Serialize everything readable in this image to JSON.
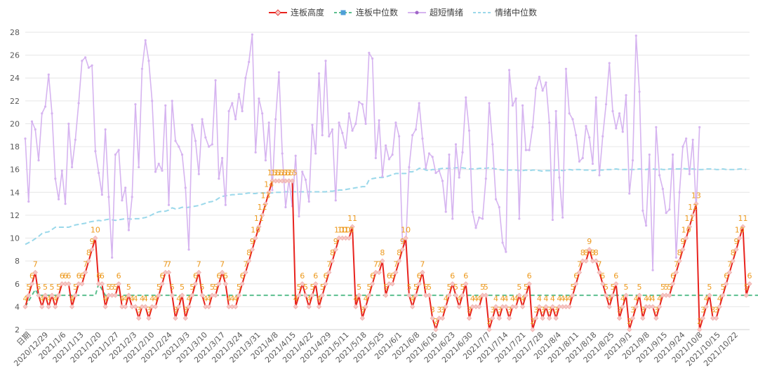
{
  "chart_data": {
    "type": "line",
    "title": "",
    "xlabel": "",
    "ylabel": "",
    "ylim": [
      2,
      28
    ],
    "yticks": [
      2,
      4,
      6,
      8,
      10,
      12,
      14,
      16,
      18,
      20,
      22,
      24,
      26,
      28
    ],
    "grid": "horizontal",
    "legend_position": "top",
    "x_tick_labels": [
      "日期",
      "2020/12/29",
      "2021/1/6",
      "2021/1/13",
      "2021/1/20",
      "2021/1/27",
      "2021/2/3",
      "2021/2/10",
      "2021/2/24",
      "2021/3/3",
      "2021/3/10",
      "2021/3/17",
      "2021/3/24",
      "2021/3/31",
      "2021/4/8",
      "2021/4/15",
      "2021/4/22",
      "2021/4/29",
      "2021/5/11",
      "2021/5/18",
      "2021/5/25",
      "2021/6/1",
      "2021/6/8",
      "2021/6/16",
      "2021/6/23",
      "2021/6/30",
      "2021/7/7",
      "2021/7/14",
      "2021/7/21",
      "2021/7/28",
      "2021/8/4",
      "2021/8/11",
      "2021/8/18",
      "2021/8/25",
      "2021/9/1",
      "2021/9/8",
      "2021/9/15",
      "2021/9/24",
      "2021/10/8",
      "2021/10/15",
      "2021/10/22"
    ],
    "series": [
      {
        "name": "连板高度",
        "color": "#e8221d",
        "marker": "diamond",
        "values": [
          4,
          5,
          6,
          7,
          5,
          4,
          5,
          4,
          5,
          4,
          5,
          6,
          6,
          6,
          4,
          5,
          6,
          6,
          7,
          8,
          9,
          10,
          6,
          6,
          4,
          5,
          5,
          5,
          6,
          4,
          4,
          5,
          4,
          4,
          3,
          4,
          4,
          3,
          4,
          4,
          5,
          6,
          7,
          7,
          5,
          3,
          4,
          5,
          3,
          4,
          5,
          6,
          7,
          5,
          4,
          4,
          5,
          5,
          6,
          7,
          6,
          4,
          4,
          4,
          5,
          6,
          7,
          8,
          9,
          10,
          11,
          12,
          13,
          14,
          15,
          15,
          15,
          15,
          15,
          15,
          15,
          4,
          5,
          6,
          5,
          4,
          5,
          6,
          4,
          5,
          6,
          7,
          8,
          9,
          10,
          10,
          10,
          10,
          11,
          4,
          5,
          3,
          4,
          5,
          6,
          7,
          7,
          8,
          5,
          6,
          6,
          7,
          8,
          9,
          10,
          5,
          4,
          5,
          6,
          7,
          5,
          5,
          3,
          2,
          3,
          3,
          4,
          5,
          6,
          5,
          4,
          5,
          6,
          3,
          4,
          4,
          4,
          5,
          5,
          2,
          3,
          4,
          3,
          4,
          4,
          3,
          4,
          4,
          5,
          4,
          5,
          6,
          2,
          3,
          4,
          3,
          4,
          3,
          4,
          3,
          4,
          4,
          4,
          4,
          5,
          6,
          7,
          8,
          8,
          9,
          8,
          8,
          7,
          6,
          5,
          4,
          5,
          6,
          3,
          4,
          5,
          2,
          3,
          4,
          5,
          3,
          4,
          4,
          4,
          3,
          4,
          5,
          5,
          5,
          6,
          7,
          8,
          9,
          10,
          11,
          12,
          13,
          2,
          3,
          4,
          5,
          3,
          3,
          4,
          5,
          6,
          7,
          8,
          9,
          10,
          11,
          5,
          6
        ]
      },
      {
        "name": "连板中位数",
        "color": "#5bbf8e",
        "marker": "square",
        "values": [
          4,
          4.5,
          5,
          5.5,
          5,
          5,
          5,
          5,
          5,
          5,
          5,
          5,
          5,
          5,
          5,
          5,
          5,
          5,
          5,
          5,
          5,
          5,
          6,
          5.5,
          5,
          5,
          5,
          5,
          5,
          5,
          5,
          5,
          5,
          5,
          5,
          5,
          5,
          5,
          5,
          5,
          5,
          5,
          5,
          5,
          5,
          5,
          5,
          5,
          5,
          5,
          5,
          5,
          5,
          5,
          5,
          5,
          5,
          5,
          5,
          5,
          5,
          5,
          5,
          5,
          5,
          5,
          5,
          5,
          5,
          5,
          5,
          5,
          5,
          5,
          5,
          5,
          5,
          5,
          5,
          5,
          5,
          5,
          5,
          5,
          5,
          5,
          5,
          5,
          5,
          5,
          5,
          5,
          5,
          5,
          5,
          5,
          5,
          5,
          5,
          5,
          5,
          5,
          5,
          5,
          5,
          5,
          5,
          5,
          5,
          5,
          5,
          5,
          5,
          5,
          5,
          5,
          5,
          5,
          5,
          5,
          5,
          5,
          5,
          5,
          5,
          5,
          5,
          5,
          5,
          5,
          5,
          5,
          5,
          5,
          5,
          5,
          5,
          5,
          5,
          5,
          5,
          5,
          5,
          5,
          5,
          5,
          5,
          5,
          5,
          5,
          5,
          5,
          5,
          5,
          5,
          5,
          5,
          5,
          5,
          5,
          5,
          5,
          5,
          5,
          5,
          5,
          5,
          5,
          5,
          5,
          5,
          5,
          5,
          5,
          5,
          5,
          5,
          5,
          5,
          5,
          5,
          5,
          5,
          5,
          5,
          5,
          5,
          5,
          5,
          5,
          5,
          5,
          5,
          5,
          5,
          5,
          5,
          5,
          5,
          5,
          5,
          5,
          5,
          5,
          5,
          5,
          5,
          5,
          5,
          5,
          5,
          5,
          5,
          5,
          5,
          5,
          5,
          5,
          5,
          5,
          5,
          5,
          5,
          5,
          5,
          5,
          5,
          5,
          5,
          5,
          5,
          5,
          5,
          5,
          5,
          5
        ]
      },
      {
        "name": "超短情绪",
        "color": "#d6b4f0",
        "marker": "circle",
        "values": [
          18.7,
          13.2,
          20.2,
          19.5,
          16.8,
          20.9,
          21.5,
          24.3,
          20.9,
          15.2,
          13.4,
          15.9,
          13.0,
          20.0,
          16.2,
          18.6,
          21.8,
          25.5,
          25.8,
          24.9,
          25.1,
          17.6,
          15.7,
          13.8,
          19.5,
          13.6,
          8.3,
          17.3,
          17.7,
          13.3,
          14.4,
          10.7,
          13.6,
          21.7,
          16.2,
          24.8,
          27.3,
          25.5,
          22.0,
          15.8,
          16.5,
          15.9,
          21.6,
          12.9,
          22.0,
          18.5,
          18.0,
          17.3,
          14.4,
          9.0,
          19.9,
          18.5,
          15.6,
          20.4,
          18.8,
          18.0,
          18.2,
          23.8,
          15.2,
          17.0,
          12.9,
          21.1,
          21.8,
          20.4,
          22.6,
          21.1,
          24.0,
          25.4,
          27.8,
          17.5,
          22.2,
          20.9,
          16.8,
          20.1,
          14.2,
          20.4,
          24.5,
          17.4,
          12.7,
          15.1,
          12.8,
          17.2,
          11.9,
          15.8,
          15.1,
          13.2,
          19.9,
          17.4,
          24.4,
          19.0,
          25.5,
          18.9,
          19.5,
          13.3,
          20.1,
          19.2,
          17.9,
          20.9,
          19.4,
          20.0,
          21.9,
          21.7,
          20.0,
          26.2,
          25.7,
          17.0,
          20.3,
          15.4,
          18.1,
          16.9,
          17.3,
          20.1,
          18.9,
          9.7,
          9.4,
          16.2,
          19.0,
          19.5,
          21.8,
          18.7,
          16.1,
          17.4,
          17.1,
          15.7,
          15.9,
          15.0,
          12.3,
          17.3,
          11.7,
          18.2,
          15.3,
          17.5,
          22.3,
          19.4,
          12.3,
          10.9,
          11.8,
          11.7,
          15.2,
          21.8,
          18.2,
          13.4,
          12.7,
          9.6,
          8.8,
          24.7,
          21.6,
          22.2,
          11.7,
          21.6,
          17.7,
          17.7,
          19.7,
          23.1,
          24.1,
          22.9,
          23.6,
          20.1,
          11.6,
          21.1,
          15.3,
          11.8,
          24.8,
          20.9,
          20.4,
          19.0,
          16.7,
          17.0,
          19.8,
          18.8,
          16.5,
          22.3,
          15.5,
          18.9,
          21.7,
          25.3,
          21.1,
          19.6,
          20.9,
          19.3,
          22.5,
          13.9,
          16.8,
          27.7,
          22.8,
          12.4,
          11.1,
          17.3,
          7.2,
          19.7,
          15.5,
          14.3,
          12.2,
          12.5,
          17.3,
          8.3,
          14.0,
          18.0,
          18.7,
          15.6,
          18.6,
          12.5,
          19.7
        ]
      },
      {
        "name": "情绪中位数",
        "color": "#9ad8ea",
        "marker": "none",
        "values": [
          9.45,
          9.6,
          9.75,
          9.95,
          10.15,
          10.4,
          10.5,
          10.55,
          10.75,
          10.95,
          10.95,
          10.95,
          10.95,
          10.95,
          11.05,
          11.15,
          11.2,
          11.25,
          11.3,
          11.4,
          11.45,
          11.5,
          11.55,
          11.5,
          11.6,
          11.65,
          11.6,
          11.55,
          11.6,
          11.65,
          11.7,
          11.7,
          11.65,
          11.7,
          11.7,
          11.75,
          11.8,
          11.9,
          12.05,
          12.2,
          12.3,
          12.35,
          12.35,
          12.45,
          12.65,
          12.55,
          12.6,
          12.7,
          12.65,
          12.7,
          12.75,
          12.8,
          12.85,
          12.95,
          13.05,
          13.15,
          13.2,
          13.3,
          13.5,
          13.65,
          13.7,
          13.75,
          13.8,
          13.8,
          13.85,
          13.85,
          13.9,
          13.95,
          13.9,
          13.9,
          13.95,
          13.95,
          13.95,
          13.95,
          13.95,
          14.0,
          14.0,
          14.0,
          14.05,
          14.05,
          14.05,
          14.05,
          14.05,
          14.05,
          14.05,
          14.05,
          14.05,
          14.05,
          14.05,
          14.05,
          14.05,
          14.1,
          14.1,
          14.15,
          14.2,
          14.2,
          14.25,
          14.3,
          14.35,
          14.4,
          14.45,
          14.5,
          14.5,
          15.1,
          15.2,
          15.25,
          15.3,
          15.3,
          15.35,
          15.45,
          15.55,
          15.65,
          15.65,
          15.65,
          15.65,
          15.8,
          15.8,
          15.9,
          16.1,
          16.1,
          15.95,
          15.9,
          16.0,
          16.0,
          16.05,
          16.1,
          16.1,
          16.1,
          16.1,
          16.15,
          16.15,
          16.15,
          16.1,
          16.05,
          16.05,
          16.05,
          16.1,
          16.1,
          16.1,
          16.15,
          16.1,
          16.05,
          16.0,
          15.95,
          15.95,
          15.95,
          15.95,
          15.95,
          15.9,
          15.9,
          15.95,
          15.9,
          15.95,
          15.95,
          15.9,
          15.85,
          15.9,
          15.9,
          15.9,
          15.95,
          15.95,
          15.9,
          15.95,
          16.0,
          15.95,
          16.0,
          16.0,
          15.95,
          15.95,
          15.95,
          15.9,
          15.95,
          15.95,
          15.95,
          16.0,
          16.0,
          16.0,
          16.05,
          16.0,
          16.0,
          16.0,
          16.0,
          16.0,
          16.0,
          16.05,
          16.0,
          16.0,
          16.05,
          16.05,
          16.0,
          16.05,
          16.0,
          16.0,
          16.05,
          16.05,
          16.05,
          16.05,
          16.1,
          16.05,
          16.05,
          16.05,
          16.0,
          16.0,
          16.0,
          16.05,
          16.05,
          16.05,
          16.0,
          16.0,
          16.05,
          16.0,
          16.0,
          16.0,
          16.0,
          16.05,
          16.05,
          16.0
        ]
      }
    ]
  }
}
